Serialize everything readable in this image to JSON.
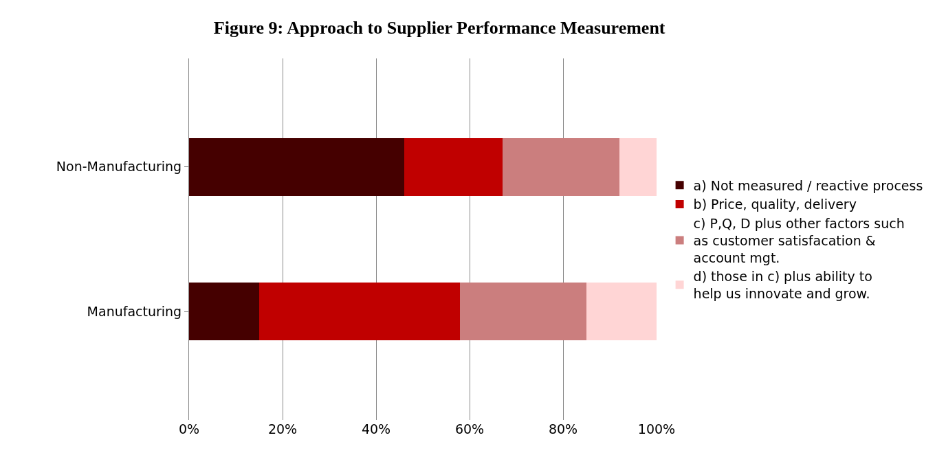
{
  "chart_data": {
    "type": "bar",
    "orientation": "horizontal",
    "stacked": true,
    "title": "Figure 9: Approach to Supplier Performance Measurement",
    "categories": [
      "Non-Manufacturing",
      "Manufacturing"
    ],
    "series": [
      {
        "name": "a) Not measured / reactive process",
        "color": "#450000",
        "values": [
          46,
          15
        ]
      },
      {
        "name": "b) Price, quality, delivery",
        "color": "#c00000",
        "values": [
          21,
          43
        ]
      },
      {
        "name": "c) P,Q, D plus other factors such as customer satisfacation & account mgt.",
        "color": "#cb7e7e",
        "values": [
          25,
          27
        ]
      },
      {
        "name": "d) those in c) plus ability to help us innovate and grow.",
        "color": "#ffd5d5",
        "values": [
          8,
          15
        ]
      }
    ],
    "xlim": [
      0,
      100
    ],
    "xticks": [
      {
        "value": 0,
        "label": "0%"
      },
      {
        "value": 20,
        "label": "20%"
      },
      {
        "value": 40,
        "label": "40%"
      },
      {
        "value": 60,
        "label": "60%"
      },
      {
        "value": 80,
        "label": "80%"
      },
      {
        "value": 100,
        "label": "100%"
      }
    ],
    "grid": "x",
    "legend": "right"
  }
}
